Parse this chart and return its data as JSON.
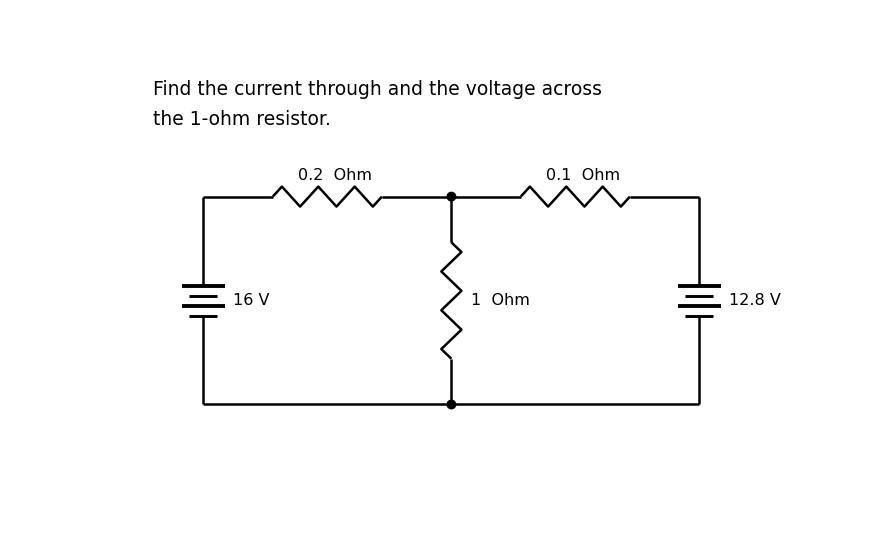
{
  "title_line1": "Find the current through and the voltage across",
  "title_line2": "the 1-ohm resistor.",
  "bg_color": "#ffffff",
  "line_color": "#000000",
  "label_02ohm": "0.2  Ohm",
  "label_01ohm": "0.1  Ohm",
  "label_1ohm": "1  Ohm",
  "label_16v": "16 V",
  "label_128v": "12.8 V",
  "fig_width": 8.83,
  "fig_height": 5.41,
  "dpi": 100,
  "TLx": 1.2,
  "TLy": 3.7,
  "TMx": 4.4,
  "TMy": 3.7,
  "TRx": 7.6,
  "TRy": 3.7,
  "BLx": 1.2,
  "BLy": 1.0,
  "BMx": 4.4,
  "BMy": 1.0,
  "BRx": 7.6,
  "BRy": 1.0
}
